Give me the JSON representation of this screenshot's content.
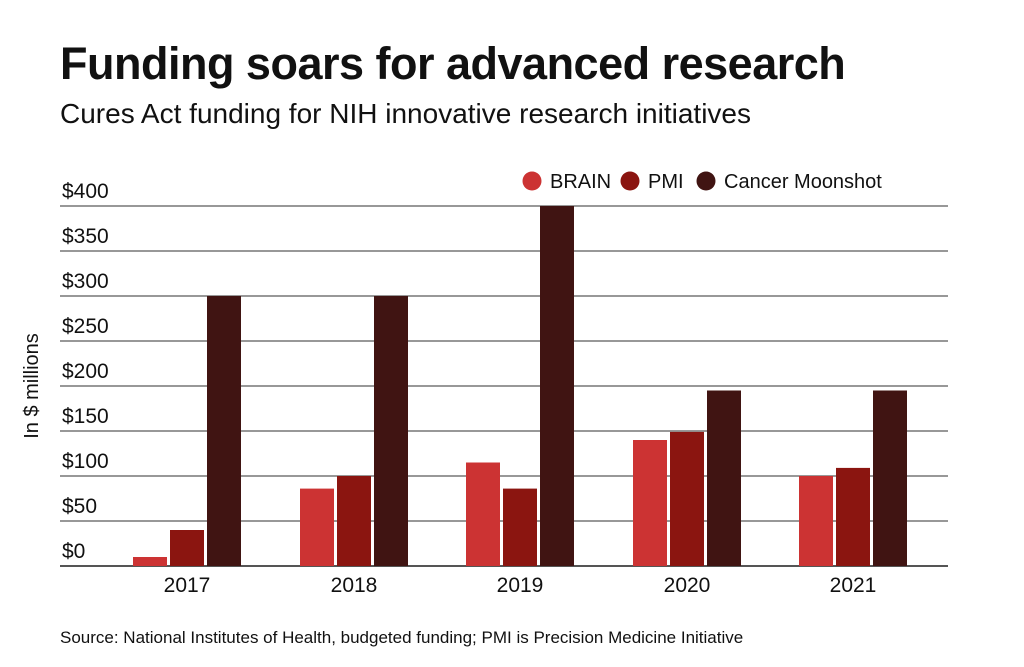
{
  "chart_data": {
    "type": "bar",
    "title": "Funding soars for advanced research",
    "subtitle": "Cures Act funding for NIH innovative research initiatives",
    "ylabel": "In $ millions",
    "xlabel": "",
    "source": "Source: National Institutes of Health, budgeted funding; PMI is Precision Medicine Initiative",
    "categories": [
      "2017",
      "2018",
      "2019",
      "2020",
      "2021"
    ],
    "series": [
      {
        "name": "BRAIN",
        "color": "#cc3333",
        "values": [
          10,
          86,
          115,
          140,
          100
        ]
      },
      {
        "name": "PMI",
        "color": "#8b1510",
        "values": [
          40,
          100,
          86,
          149,
          109
        ]
      },
      {
        "name": "Cancer Moonshot",
        "color": "#401412",
        "values": [
          300,
          300,
          400,
          195,
          195
        ]
      }
    ],
    "ylim": [
      0,
      400
    ],
    "yticks": [
      "$0",
      "$50",
      "$100",
      "$150",
      "$200",
      "$250",
      "$300",
      "$350",
      "$400"
    ],
    "grid": true,
    "legend": "top-right"
  }
}
